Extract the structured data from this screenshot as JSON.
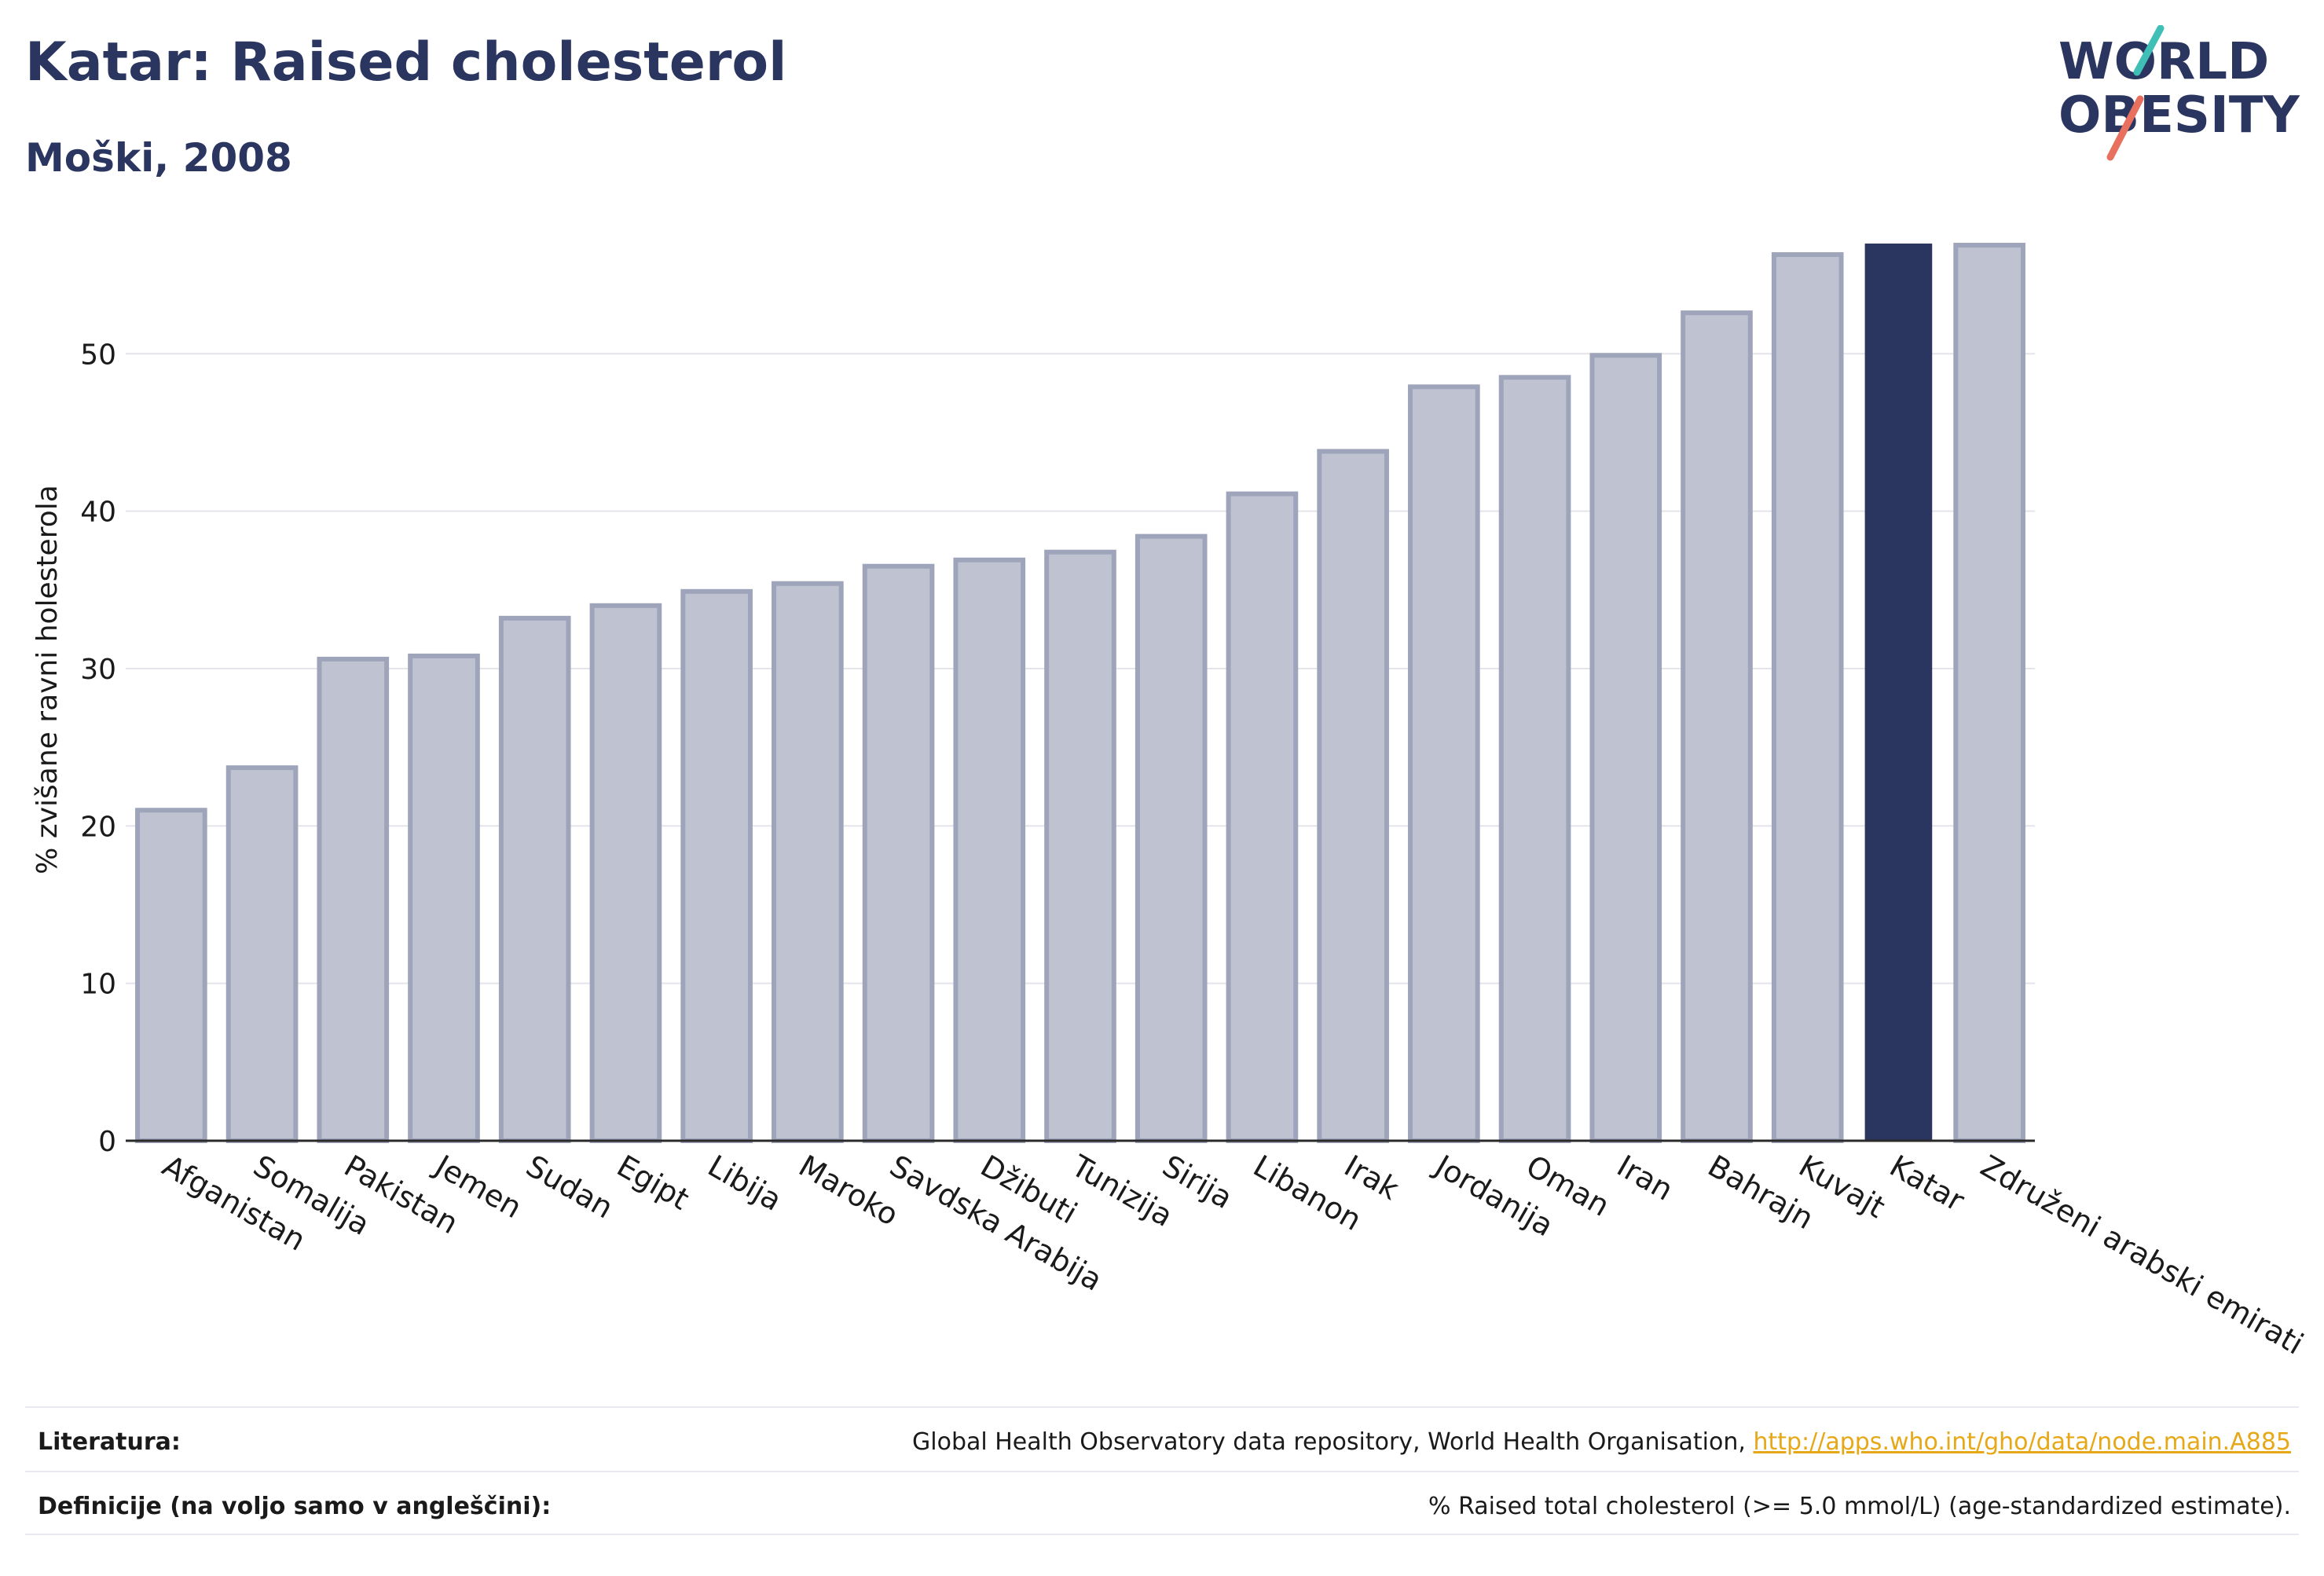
{
  "title": "Katar: Raised cholesterol",
  "subtitle": "Moški, 2008",
  "logo": {
    "line1": "WORLD",
    "line2": "OBESITY"
  },
  "colors": {
    "bar": "#bfc3d1",
    "bar_border": "#9ea4ba",
    "highlight": "#2a3560",
    "grid": "#e4e4ea",
    "text": "#1a1a1a"
  },
  "chart_data": {
    "type": "bar",
    "ylabel": "% zvišane ravni holesterola",
    "ylim": [
      0,
      57.5
    ],
    "yticks": [
      0,
      10,
      20,
      30,
      40,
      50
    ],
    "highlight": "Katar",
    "grid": true,
    "categories": [
      "Afganistan",
      "Somalija",
      "Pakistan",
      "Jemen",
      "Sudan",
      "Egipt",
      "Libija",
      "Maroko",
      "Savdska Arabija",
      "Džibuti",
      "Tunizija",
      "Sirija",
      "Libanon",
      "Irak",
      "Jordanija",
      "Oman",
      "Iran",
      "Bahrajn",
      "Kuvajt",
      "Katar",
      "Združeni arabski emirati"
    ],
    "values": [
      21.0,
      23.7,
      30.6,
      30.8,
      33.2,
      34.0,
      34.9,
      35.4,
      36.5,
      36.9,
      37.4,
      38.4,
      41.1,
      43.8,
      47.9,
      48.5,
      49.9,
      52.6,
      56.3,
      57.0,
      56.9
    ]
  },
  "footer": {
    "sources_label": "Literatura:",
    "sources_text": "Global Health Observatory data repository, World Health Organisation, ",
    "sources_link": "http://apps.who.int/gho/data/node.main.A885",
    "definitions_label": "Definicije (na voljo samo v angleščini):",
    "definitions_text": "% Raised total cholesterol (>= 5.0 mmol/L) (age-standardized estimate)."
  }
}
